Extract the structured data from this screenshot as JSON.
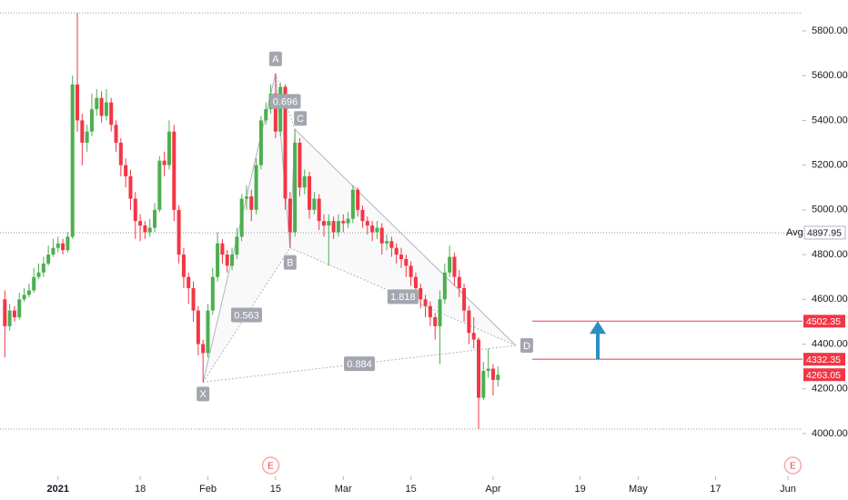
{
  "chart_data": {
    "type": "candlestick",
    "up_color": "#4caf50",
    "down_color": "#f23645",
    "xlim": [
      -12,
      154
    ],
    "ylim": [
      3825,
      5938
    ],
    "xticks": [
      {
        "value": 0,
        "label": "2021"
      },
      {
        "value": 17,
        "label": "18"
      },
      {
        "value": 31,
        "label": "Feb"
      },
      {
        "value": 45,
        "label": "15"
      },
      {
        "value": 59,
        "label": "Mar"
      },
      {
        "value": 73,
        "label": "15"
      },
      {
        "value": 90,
        "label": "Apr"
      },
      {
        "value": 108,
        "label": "19"
      },
      {
        "value": 120,
        "label": "May"
      },
      {
        "value": 136,
        "label": "17"
      },
      {
        "value": 151,
        "label": "Jun"
      }
    ],
    "yticks": [
      {
        "value": 4000,
        "label": "4000.00"
      },
      {
        "value": 4200,
        "label": "4200.00"
      },
      {
        "value": 4400,
        "label": "4400.00"
      },
      {
        "value": 4600,
        "label": "4600.00"
      },
      {
        "value": 4800,
        "label": "4800.00"
      },
      {
        "value": 5000,
        "label": "5000.00"
      },
      {
        "value": 5200,
        "label": "5200.00"
      },
      {
        "value": 5400,
        "label": "5400.00"
      },
      {
        "value": 5600,
        "label": "5600.00"
      },
      {
        "value": 5800,
        "label": "5800.00"
      }
    ],
    "x": [
      -11,
      -10,
      -9,
      -8,
      -7,
      -6,
      -5,
      -4,
      -3,
      -2,
      -1,
      0,
      1,
      2,
      3,
      4,
      5,
      6,
      7,
      8,
      9,
      10,
      11,
      12,
      13,
      14,
      15,
      16,
      17,
      18,
      19,
      20,
      21,
      22,
      23,
      24,
      25,
      26,
      27,
      28,
      29,
      30,
      31,
      32,
      33,
      34,
      35,
      36,
      37,
      38,
      39,
      40,
      41,
      42,
      43,
      44,
      45,
      46,
      47,
      48,
      49,
      50,
      51,
      52,
      53,
      54,
      55,
      56,
      57,
      58,
      59,
      60,
      61,
      62,
      63,
      64,
      65,
      66,
      67,
      68,
      69,
      70,
      71,
      72,
      73,
      74,
      75,
      76,
      77,
      78,
      79,
      80,
      81,
      82,
      83,
      84,
      85,
      86,
      87,
      88,
      89,
      90,
      91
    ],
    "open": [
      4600,
      4480,
      4550,
      4520,
      4600,
      4620,
      4640,
      4700,
      4720,
      4760,
      4800,
      4830,
      4850,
      4820,
      4880,
      5560,
      5400,
      5300,
      5350,
      5450,
      5500,
      5420,
      5480,
      5380,
      5300,
      5200,
      5150,
      5050,
      4950,
      4930,
      4900,
      4920,
      5000,
      5220,
      5200,
      5350,
      5000,
      4800,
      4700,
      4650,
      4550,
      4400,
      4360,
      4550,
      4700,
      4850,
      4800,
      4750,
      4800,
      4880,
      5050,
      5060,
      5000,
      5200,
      5400,
      5450,
      5520,
      5350,
      5550,
      5050,
      4900,
      5300,
      5100,
      5150,
      5000,
      5050,
      4950,
      4930,
      4950,
      4900,
      4950,
      4940,
      4960,
      5090,
      5000,
      4950,
      4930,
      4900,
      4920,
      4850,
      4860,
      4830,
      4800,
      4780,
      4750,
      4700,
      4650,
      4600,
      4570,
      4520,
      4480,
      4600,
      4720,
      4790,
      4700,
      4650,
      4550,
      4450,
      4420,
      4160,
      4280,
      4290,
      4240
    ],
    "high": [
      4640,
      4580,
      4570,
      4630,
      4650,
      4670,
      4740,
      4760,
      4790,
      4840,
      4870,
      4880,
      4870,
      4900,
      5600,
      5880,
      5430,
      5380,
      5520,
      5540,
      5530,
      5540,
      5500,
      5400,
      5320,
      5230,
      5180,
      5080,
      4980,
      4950,
      4960,
      5030,
      5240,
      5260,
      5400,
      5380,
      5020,
      4830,
      4720,
      4680,
      4570,
      4420,
      4580,
      4740,
      4900,
      4870,
      4820,
      4830,
      4920,
      5070,
      5110,
      5090,
      5230,
      5420,
      5480,
      5560,
      5610,
      5570,
      5560,
      5080,
      5360,
      5320,
      5180,
      5170,
      5080,
      5070,
      4980,
      4980,
      4970,
      4980,
      4980,
      4990,
      5110,
      5100,
      5020,
      4970,
      4950,
      4950,
      4940,
      4890,
      4880,
      4850,
      4830,
      4800,
      4770,
      4720,
      4670,
      4620,
      4590,
      4540,
      4640,
      4760,
      4840,
      4810,
      4730,
      4670,
      4570,
      4520,
      4430,
      4320,
      4380,
      4310,
      4300
    ],
    "low": [
      4340,
      4460,
      4500,
      4510,
      4590,
      4610,
      4630,
      4690,
      4700,
      4750,
      4790,
      4810,
      4800,
      4810,
      4870,
      5350,
      5200,
      5260,
      5330,
      5420,
      5390,
      5400,
      5350,
      5260,
      5150,
      5100,
      5000,
      4870,
      4860,
      4870,
      4880,
      4900,
      4990,
      5150,
      5180,
      4950,
      4760,
      4650,
      4580,
      4500,
      4350,
      4230,
      4340,
      4530,
      4680,
      4760,
      4720,
      4730,
      4780,
      4860,
      5000,
      4950,
      4980,
      5180,
      5380,
      5430,
      5320,
      5330,
      5000,
      4830,
      4880,
      5060,
      5070,
      4960,
      4980,
      4910,
      4880,
      4750,
      4870,
      4880,
      4900,
      4920,
      4940,
      4970,
      4920,
      4890,
      4860,
      4870,
      4800,
      4820,
      4790,
      4760,
      4740,
      4700,
      4660,
      4600,
      4560,
      4520,
      4480,
      4420,
      4310,
      4580,
      4700,
      4660,
      4610,
      4500,
      4400,
      4380,
      4020,
      4150,
      4250,
      4170,
      4210
    ],
    "close": [
      4480,
      4550,
      4520,
      4600,
      4620,
      4640,
      4700,
      4720,
      4760,
      4800,
      4830,
      4850,
      4820,
      4880,
      5560,
      5400,
      5300,
      5350,
      5450,
      5500,
      5420,
      5480,
      5380,
      5300,
      5200,
      5150,
      5050,
      4950,
      4930,
      4900,
      4920,
      5000,
      5220,
      5200,
      5350,
      5000,
      4800,
      4700,
      4650,
      4550,
      4400,
      4360,
      4550,
      4700,
      4850,
      4800,
      4750,
      4800,
      4880,
      5050,
      5060,
      5000,
      5200,
      5400,
      5450,
      5520,
      5350,
      5550,
      5050,
      4900,
      5300,
      5100,
      5150,
      5000,
      5050,
      4950,
      4930,
      4950,
      4900,
      4950,
      4940,
      4960,
      5090,
      5000,
      4950,
      4930,
      4900,
      4920,
      4850,
      4860,
      4830,
      4800,
      4780,
      4750,
      4700,
      4650,
      4600,
      4570,
      4520,
      4480,
      4600,
      4720,
      4790,
      4700,
      4650,
      4550,
      4450,
      4420,
      4160,
      4280,
      4290,
      4240,
      4263.05
    ],
    "pattern": {
      "color": "#b2b5be",
      "points": [
        {
          "label": "X",
          "x": 30,
          "value": 4230
        },
        {
          "label": "A",
          "x": 45,
          "value": 5610
        },
        {
          "label": "B",
          "x": 48,
          "value": 4830
        },
        {
          "label": "C",
          "x": 49,
          "value": 5360
        },
        {
          "label": "D",
          "x": 94.7,
          "value": 4394
        }
      ],
      "ratios": [
        {
          "label": "0.563"
        },
        {
          "label": "0.696"
        },
        {
          "label": "1.818"
        },
        {
          "label": "0.884"
        }
      ]
    },
    "avg": {
      "label": "Avg",
      "value": 4897.95
    },
    "levels": [
      4502.35,
      4332.35
    ],
    "last_price": 4263.05,
    "arrow_color": "#2a8fc1",
    "events": [
      {
        "label": "E",
        "x": 44
      },
      {
        "label": "E",
        "x": 152
      }
    ]
  }
}
